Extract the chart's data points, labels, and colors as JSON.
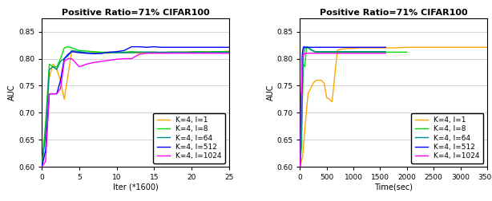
{
  "title": "Positive Ratio=71% CIFAR100",
  "ylabel": "AUC",
  "xlabel_left": "Iter (*1600)",
  "xlabel_right": "Time(sec)",
  "ylim": [
    0.6,
    0.875
  ],
  "xlim_left": [
    0,
    25
  ],
  "xlim_right": [
    0,
    3500
  ],
  "yticks": [
    0.6,
    0.65,
    0.7,
    0.75,
    0.8,
    0.85
  ],
  "xticks_left": [
    0,
    5,
    10,
    15,
    20,
    25
  ],
  "xticks_right": [
    0,
    500,
    1000,
    1500,
    2000,
    2500,
    3000,
    3500
  ],
  "legend_labels": [
    "K=4, l=1",
    "K=4, l=8",
    "K=4, l=64",
    "K=4, l=512",
    "K=4, l=1024"
  ],
  "colors": [
    "#FFA500",
    "#00DD00",
    "#008B8B",
    "#0000FF",
    "#FF00FF"
  ],
  "linewidth": 1.0,
  "title_fontsize": 8,
  "label_fontsize": 7,
  "tick_fontsize": 6.5,
  "legend_fontsize": 6.5,
  "left_data": {
    "l1_x": [
      0,
      0.5,
      1,
      1.5,
      2,
      2.5,
      3,
      3.5,
      4,
      5,
      6,
      7,
      8,
      9,
      10,
      11,
      12,
      13,
      14,
      15,
      16,
      17,
      18,
      19,
      20,
      21,
      22,
      23,
      24,
      25
    ],
    "l1_y": [
      0.6,
      0.67,
      0.765,
      0.79,
      0.78,
      0.76,
      0.725,
      0.77,
      0.815,
      0.812,
      0.81,
      0.812,
      0.811,
      0.81,
      0.812,
      0.811,
      0.812,
      0.81,
      0.811,
      0.812,
      0.811,
      0.812,
      0.812,
      0.812,
      0.813,
      0.813,
      0.813,
      0.813,
      0.813,
      0.814
    ],
    "l8_x": [
      0,
      0.5,
      1,
      1.5,
      2,
      2.5,
      3,
      3.5,
      4,
      5,
      6,
      7,
      8,
      9,
      10,
      11,
      12,
      13,
      14,
      15,
      16,
      17,
      18,
      19,
      20,
      21,
      22,
      23,
      24,
      25
    ],
    "l8_y": [
      0.6,
      0.68,
      0.79,
      0.785,
      0.785,
      0.8,
      0.82,
      0.822,
      0.82,
      0.815,
      0.814,
      0.813,
      0.812,
      0.812,
      0.811,
      0.812,
      0.813,
      0.812,
      0.812,
      0.812,
      0.811,
      0.812,
      0.812,
      0.812,
      0.812,
      0.813,
      0.812,
      0.813,
      0.813,
      0.813
    ],
    "l64_x": [
      0,
      0.5,
      1,
      1.5,
      2,
      2.5,
      3,
      3.5,
      4,
      5,
      6,
      7,
      8,
      9,
      10,
      11,
      12,
      13,
      14,
      15,
      16,
      17,
      18,
      19,
      20,
      21,
      22,
      23,
      24,
      25
    ],
    "l64_y": [
      0.6,
      0.66,
      0.78,
      0.785,
      0.78,
      0.795,
      0.8,
      0.805,
      0.815,
      0.813,
      0.811,
      0.81,
      0.81,
      0.811,
      0.811,
      0.811,
      0.811,
      0.812,
      0.812,
      0.812,
      0.812,
      0.812,
      0.812,
      0.812,
      0.812,
      0.812,
      0.812,
      0.812,
      0.812,
      0.812
    ],
    "l512_x": [
      0,
      0.5,
      1,
      1.5,
      2,
      2.5,
      3,
      3.5,
      4,
      5,
      6,
      7,
      8,
      9,
      10,
      11,
      12,
      13,
      14,
      15,
      16,
      17,
      18,
      19,
      20,
      21,
      22,
      23,
      24,
      25
    ],
    "l512_y": [
      0.6,
      0.63,
      0.735,
      0.735,
      0.735,
      0.76,
      0.8,
      0.808,
      0.813,
      0.811,
      0.81,
      0.809,
      0.81,
      0.812,
      0.813,
      0.815,
      0.822,
      0.822,
      0.821,
      0.822,
      0.821,
      0.821,
      0.821,
      0.821,
      0.821,
      0.821,
      0.821,
      0.821,
      0.821,
      0.821
    ],
    "l1024_x": [
      0,
      0.5,
      1,
      1.5,
      2,
      2.5,
      3,
      3.5,
      4,
      5,
      6,
      7,
      8,
      9,
      10,
      11,
      12,
      13,
      14,
      15,
      16,
      17,
      18,
      19,
      20,
      21,
      22,
      23,
      24,
      25
    ],
    "l1024_y": [
      0.6,
      0.61,
      0.735,
      0.735,
      0.735,
      0.745,
      0.795,
      0.8,
      0.8,
      0.785,
      0.79,
      0.793,
      0.795,
      0.797,
      0.799,
      0.8,
      0.8,
      0.808,
      0.81,
      0.81,
      0.81,
      0.81,
      0.81,
      0.81,
      0.81,
      0.81,
      0.81,
      0.81,
      0.81,
      0.81
    ]
  },
  "right_data": {
    "l1_x": [
      0,
      50,
      100,
      150,
      200,
      250,
      300,
      350,
      400,
      450,
      500,
      550,
      600,
      700,
      800,
      900,
      1000,
      1100,
      1200,
      1400,
      1600,
      1800,
      2000,
      2200,
      2500,
      2800,
      3000,
      3200,
      3400,
      3500
    ],
    "l1_y": [
      0.6,
      0.62,
      0.68,
      0.735,
      0.745,
      0.755,
      0.76,
      0.76,
      0.76,
      0.755,
      0.728,
      0.725,
      0.72,
      0.816,
      0.818,
      0.819,
      0.819,
      0.82,
      0.82,
      0.82,
      0.82,
      0.82,
      0.821,
      0.821,
      0.821,
      0.821,
      0.821,
      0.821,
      0.821,
      0.821
    ],
    "l8_x": [
      0,
      30,
      60,
      90,
      120,
      150,
      180,
      200,
      230,
      260,
      300,
      350,
      400,
      450,
      500,
      600,
      700,
      800,
      1000,
      1200,
      1400,
      1600,
      1800,
      2000
    ],
    "l8_y": [
      0.6,
      0.64,
      0.79,
      0.785,
      0.82,
      0.82,
      0.818,
      0.816,
      0.815,
      0.813,
      0.812,
      0.812,
      0.812,
      0.812,
      0.812,
      0.812,
      0.812,
      0.812,
      0.812,
      0.812,
      0.812,
      0.812,
      0.812,
      0.812
    ],
    "l64_x": [
      0,
      20,
      40,
      60,
      80,
      100,
      130,
      160,
      190,
      220,
      260,
      300,
      350,
      400,
      500,
      600,
      700,
      800,
      1000,
      1200,
      1400,
      1600
    ],
    "l64_y": [
      0.6,
      0.64,
      0.73,
      0.8,
      0.818,
      0.82,
      0.822,
      0.82,
      0.818,
      0.816,
      0.814,
      0.813,
      0.813,
      0.813,
      0.813,
      0.813,
      0.813,
      0.813,
      0.813,
      0.813,
      0.813,
      0.813
    ],
    "l512_x": [
      0,
      10,
      20,
      30,
      40,
      50,
      60,
      70,
      80,
      90,
      100,
      120,
      150,
      180,
      210,
      250,
      300,
      350,
      400,
      500,
      600,
      700,
      800,
      1000,
      1200,
      1400,
      1600
    ],
    "l512_y": [
      0.6,
      0.62,
      0.735,
      0.735,
      0.805,
      0.815,
      0.82,
      0.822,
      0.822,
      0.821,
      0.821,
      0.821,
      0.821,
      0.821,
      0.821,
      0.821,
      0.821,
      0.821,
      0.821,
      0.821,
      0.821,
      0.821,
      0.821,
      0.821,
      0.821,
      0.821,
      0.821
    ],
    "l1024_x": [
      0,
      10,
      20,
      30,
      40,
      50,
      60,
      80,
      100,
      130,
      160,
      200,
      250,
      300,
      350,
      400,
      500,
      600,
      700,
      800,
      1000,
      1200,
      1400,
      1600
    ],
    "l1024_y": [
      0.6,
      0.61,
      0.735,
      0.735,
      0.795,
      0.8,
      0.808,
      0.808,
      0.81,
      0.81,
      0.81,
      0.81,
      0.81,
      0.81,
      0.81,
      0.81,
      0.81,
      0.81,
      0.81,
      0.81,
      0.81,
      0.81,
      0.81,
      0.81
    ]
  }
}
